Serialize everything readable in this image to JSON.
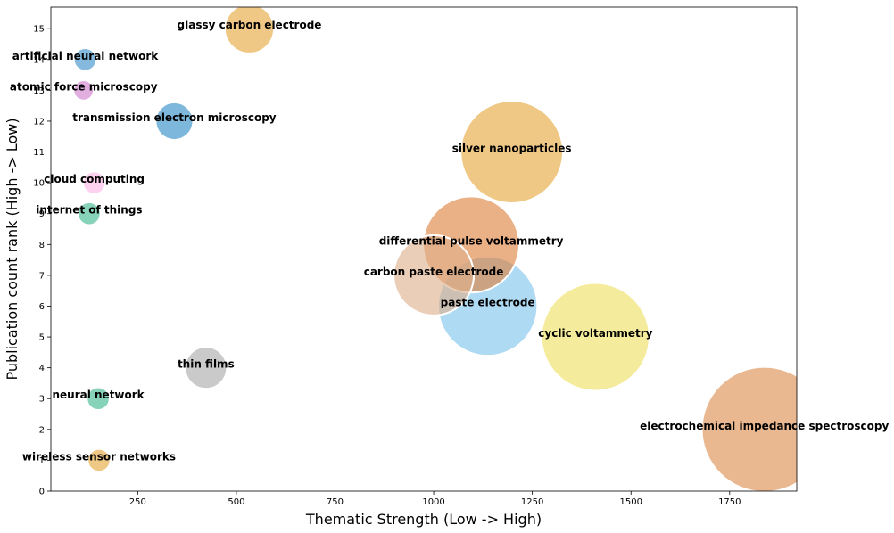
{
  "chart_data": {
    "type": "scatter",
    "title": "",
    "xlabel": "Thematic Strength (Low -> High)",
    "ylabel": "Publication count rank (High -> Low)",
    "xlim": [
      30,
      1920
    ],
    "ylim": [
      0,
      15.7
    ],
    "xticks": [
      250,
      500,
      750,
      1000,
      1250,
      1500,
      1750
    ],
    "yticks": [
      0,
      1,
      2,
      3,
      4,
      5,
      6,
      7,
      8,
      9,
      10,
      11,
      12,
      13,
      14,
      15
    ],
    "grid": false,
    "points": [
      {
        "label": "glassy carbon electrode",
        "x": 533,
        "y": 15,
        "size": 0.8,
        "color": "#e6a73a"
      },
      {
        "label": "artificial neural network",
        "x": 117,
        "y": 14,
        "size": 0.37,
        "color": "#3a8fc9"
      },
      {
        "label": "atomic force microscopy",
        "x": 113,
        "y": 13,
        "size": 0.33,
        "color": "#cf7ccb"
      },
      {
        "label": "transmission electron microscopy",
        "x": 343,
        "y": 12,
        "size": 0.61,
        "color": "#2e8bc7"
      },
      {
        "label": "silver nanoparticles",
        "x": 1198,
        "y": 11,
        "size": 1.66,
        "color": "#e6a73a"
      },
      {
        "label": "cloud computing",
        "x": 140,
        "y": 10,
        "size": 0.37,
        "color": "#fbb6e6"
      },
      {
        "label": "internet of things",
        "x": 127,
        "y": 9,
        "size": 0.37,
        "color": "#3db88e"
      },
      {
        "label": "differential pulse voltammetry",
        "x": 1095,
        "y": 8,
        "size": 1.56,
        "color": "#dd7f3b"
      },
      {
        "label": "carbon paste electrode",
        "x": 1000,
        "y": 7,
        "size": 1.3,
        "color": "#dfb08c"
      },
      {
        "label": "paste electrode",
        "x": 1137,
        "y": 6,
        "size": 1.61,
        "color": "#7dc4ec"
      },
      {
        "label": "cyclic voltammetry",
        "x": 1410,
        "y": 5,
        "size": 1.75,
        "color": "#eee160"
      },
      {
        "label": "thin films",
        "x": 423,
        "y": 4,
        "size": 0.68,
        "color": "#aaaaaa"
      },
      {
        "label": "neural network",
        "x": 150,
        "y": 3,
        "size": 0.37,
        "color": "#3db88e"
      },
      {
        "label": "electrochemical impedance spectroscopy",
        "x": 1838,
        "y": 2,
        "size": 2.03,
        "color": "#dd8c4c"
      },
      {
        "label": "wireless sensor networks",
        "x": 152,
        "y": 1,
        "size": 0.37,
        "color": "#e6a73a"
      }
    ]
  }
}
